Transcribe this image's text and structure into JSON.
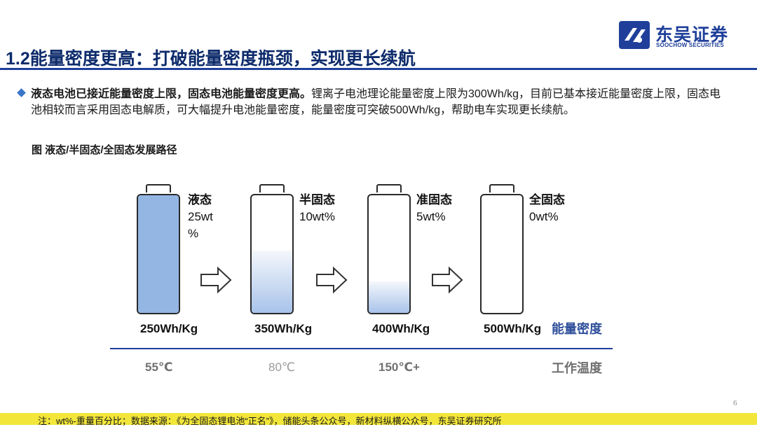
{
  "brand": {
    "name_cn": "东吴证券",
    "name_en": "SOOCHOW SECURITIES",
    "color": "#1f3f9a"
  },
  "page": {
    "title": "1.2能量密度更高：打破能量密度瓶颈，实现更长续航",
    "page_number": "6"
  },
  "bullet": {
    "icon": "diamond-bullet-icon",
    "bold": "液态电池已接近能量密度上限，固态电池能量密度更高。",
    "text": "锂离子电池理论能量密度上限为300Wh/kg，目前已基本接近能量密度上限，固态电池相较而言采用固态电解质，可大幅提升电池能量密度，能量密度可突破500Wh/kg，帮助电车实现更长续航。"
  },
  "figure": {
    "caption": "图 液态/半固态/全固态发展路径",
    "batteries": [
      {
        "state": "液态",
        "wt_line1": "25wt",
        "wt_line2": "%",
        "energy": "250Wh/Kg",
        "temperature": "55℃",
        "fill_fraction": 1.0
      },
      {
        "state": "半固态",
        "wt_line1": "10wt%",
        "wt_line2": "",
        "energy": "350Wh/Kg",
        "temperature": "80℃",
        "fill_fraction": 0.53
      },
      {
        "state": "准固态",
        "wt_line1": "5wt%",
        "wt_line2": "",
        "energy": "400Wh/Kg",
        "temperature": "150℃+",
        "fill_fraction": 0.27
      },
      {
        "state": "全固态",
        "wt_line1": "0wt%",
        "wt_line2": "",
        "energy": "500Wh/Kg",
        "temperature": "",
        "fill_fraction": 0
      }
    ],
    "energy_axis_label": "能量密度",
    "temp_axis_label": "工作温度"
  },
  "footer": {
    "note": "注：wt%-重量百分比；数据来源：《为全固态锂电池“正名”》，储能头条公众号，新材料纵横公众号，东吴证券研究所"
  }
}
